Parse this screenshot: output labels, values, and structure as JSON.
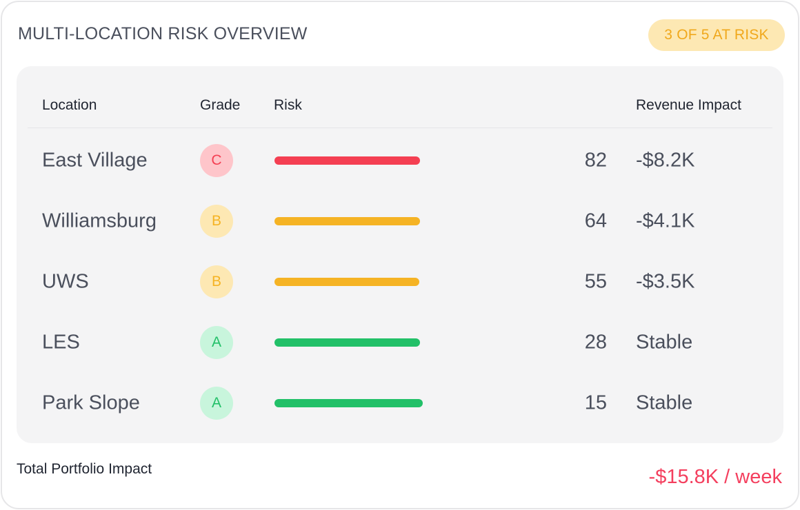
{
  "header": {
    "title": "MULTI-LOCATION RISK OVERVIEW",
    "badge": "3 OF 5 AT RISK"
  },
  "colors": {
    "high": "#f43f52",
    "high_bg": "#fec5ca",
    "medium": "#f5b324",
    "medium_bg": "#fde8b3",
    "low": "#22c068",
    "low_bg": "#c8f5dc",
    "negative_text": "#f43f5e"
  },
  "table": {
    "columns": [
      "Location",
      "Grade",
      "Risk",
      "Revenue Impact"
    ],
    "rows": [
      {
        "location": "East Village",
        "grade": "C",
        "level": "high",
        "risk_fill": 0.96,
        "score": "82",
        "impact": "-$8.2K"
      },
      {
        "location": "Williamsburg",
        "grade": "B",
        "level": "medium",
        "risk_fill": 0.96,
        "score": "64",
        "impact": "-$4.1K"
      },
      {
        "location": "UWS",
        "grade": "B",
        "level": "medium",
        "risk_fill": 0.955,
        "score": "55",
        "impact": "-$3.5K"
      },
      {
        "location": "LES",
        "grade": "A",
        "level": "low",
        "risk_fill": 0.96,
        "score": "28",
        "impact": "Stable"
      },
      {
        "location": "Park Slope",
        "grade": "A",
        "level": "low",
        "risk_fill": 0.975,
        "score": "15",
        "impact": "Stable"
      }
    ]
  },
  "footer": {
    "label": "Total Portfolio Impact",
    "value": "-$15.8K / week"
  }
}
